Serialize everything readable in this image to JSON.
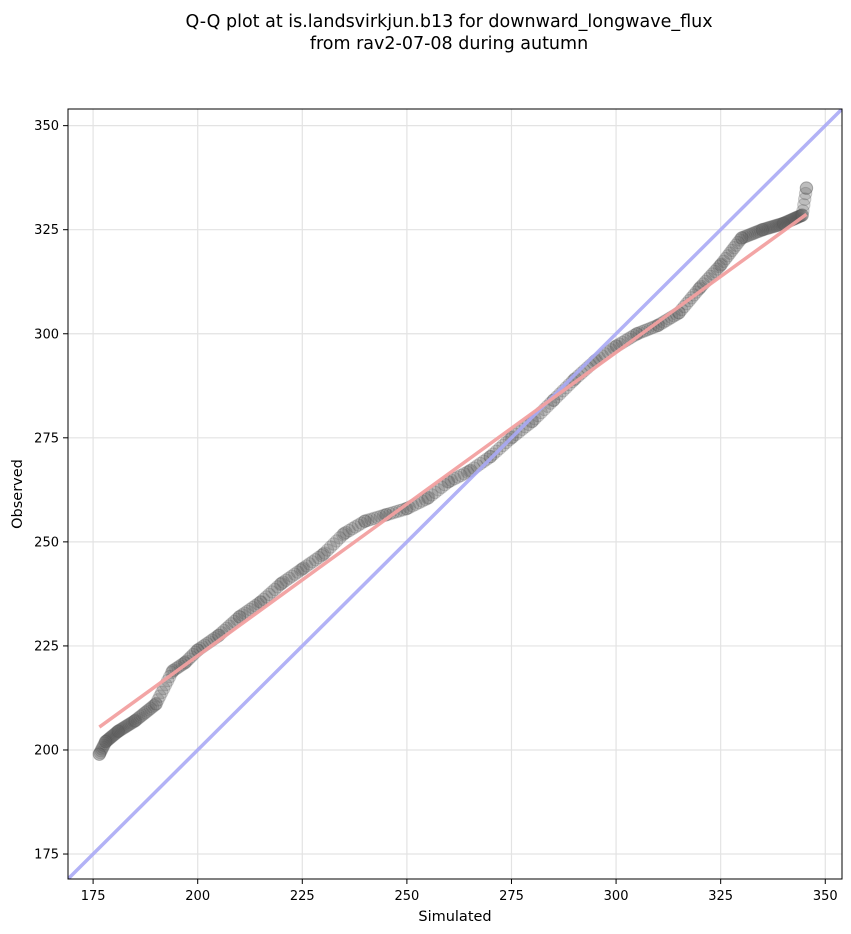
{
  "chart_data": {
    "type": "scatter",
    "title_lines": [
      "Q-Q plot at is.landsvirkjun.b13 for downward_longwave_flux",
      "from rav2-07-08 during autumn"
    ],
    "xlabel": "Simulated",
    "ylabel": "Observed",
    "xlim": [
      169,
      354
    ],
    "ylim": [
      169,
      354
    ],
    "xticks": [
      175,
      200,
      225,
      250,
      275,
      300,
      325,
      350
    ],
    "yticks": [
      175,
      200,
      225,
      250,
      275,
      300,
      325,
      350
    ],
    "grid": true,
    "reference_line": {
      "name": "1:1",
      "color": "#aaaaf5"
    },
    "fit_line": {
      "x": [
        176.5,
        345.5
      ],
      "y": [
        205.5,
        328.7
      ],
      "color": "#f2a0a0"
    },
    "points_color": "#555555",
    "quantile_knots": [
      [
        176.5,
        199
      ],
      [
        178,
        202
      ],
      [
        181,
        204.5
      ],
      [
        185,
        207
      ],
      [
        190,
        211
      ],
      [
        194,
        219
      ],
      [
        197,
        221
      ],
      [
        200,
        224
      ],
      [
        205,
        227.5
      ],
      [
        210,
        232
      ],
      [
        215,
        235.5
      ],
      [
        220,
        240
      ],
      [
        225,
        243.5
      ],
      [
        230,
        247
      ],
      [
        235,
        252
      ],
      [
        240,
        255
      ],
      [
        245,
        256.5
      ],
      [
        250,
        258
      ],
      [
        255,
        260.5
      ],
      [
        260,
        264.5
      ],
      [
        265,
        267
      ],
      [
        270,
        270.5
      ],
      [
        275,
        275
      ],
      [
        280,
        279
      ],
      [
        285,
        284
      ],
      [
        290,
        289
      ],
      [
        295,
        293.5
      ],
      [
        300,
        297
      ],
      [
        305,
        300
      ],
      [
        310,
        302
      ],
      [
        315,
        305
      ],
      [
        320,
        311
      ],
      [
        325,
        316.5
      ],
      [
        330,
        323
      ],
      [
        335,
        325
      ],
      [
        340,
        326.5
      ],
      [
        344.5,
        328.5
      ],
      [
        345.5,
        335
      ]
    ]
  }
}
